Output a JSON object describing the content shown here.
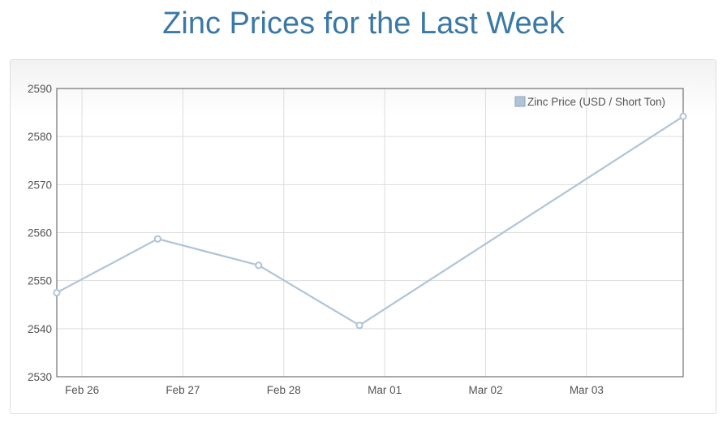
{
  "page": {
    "title": "Zinc Prices for the Last Week"
  },
  "colors": {
    "title": "#3a78a6",
    "series_line": "#b0c4d8",
    "grid": "#dddddd",
    "axis": "#555555"
  },
  "chart_data": {
    "type": "line",
    "title": "",
    "xlabel": "",
    "ylabel": "",
    "ylim": [
      2530,
      2590
    ],
    "yticks": [
      2530,
      2540,
      2550,
      2560,
      2570,
      2580,
      2590
    ],
    "xlim": [
      "2017-02-25 18:00",
      "2017-03-03 23:00"
    ],
    "xticks": [
      {
        "date": "2017-02-26",
        "label": "Feb 26"
      },
      {
        "date": "2017-02-27",
        "label": "Feb 27"
      },
      {
        "date": "2017-02-28",
        "label": "Feb 28"
      },
      {
        "date": "2017-03-01",
        "label": "Mar 01"
      },
      {
        "date": "2017-03-02",
        "label": "Mar 02"
      },
      {
        "date": "2017-03-03",
        "label": "Mar 03"
      }
    ],
    "grid": true,
    "legend_position": "top-right",
    "series": [
      {
        "name": "Zinc Price (USD / Short Ton)",
        "points": [
          {
            "x": "2017-02-25 18:00",
            "y": 2547.5
          },
          {
            "x": "2017-02-26 18:00",
            "y": 2558.7
          },
          {
            "x": "2017-02-27 18:00",
            "y": 2553.2
          },
          {
            "x": "2017-02-28 18:00",
            "y": 2540.7
          },
          {
            "x": "2017-03-03 23:00",
            "y": 2584.2
          }
        ]
      }
    ]
  }
}
